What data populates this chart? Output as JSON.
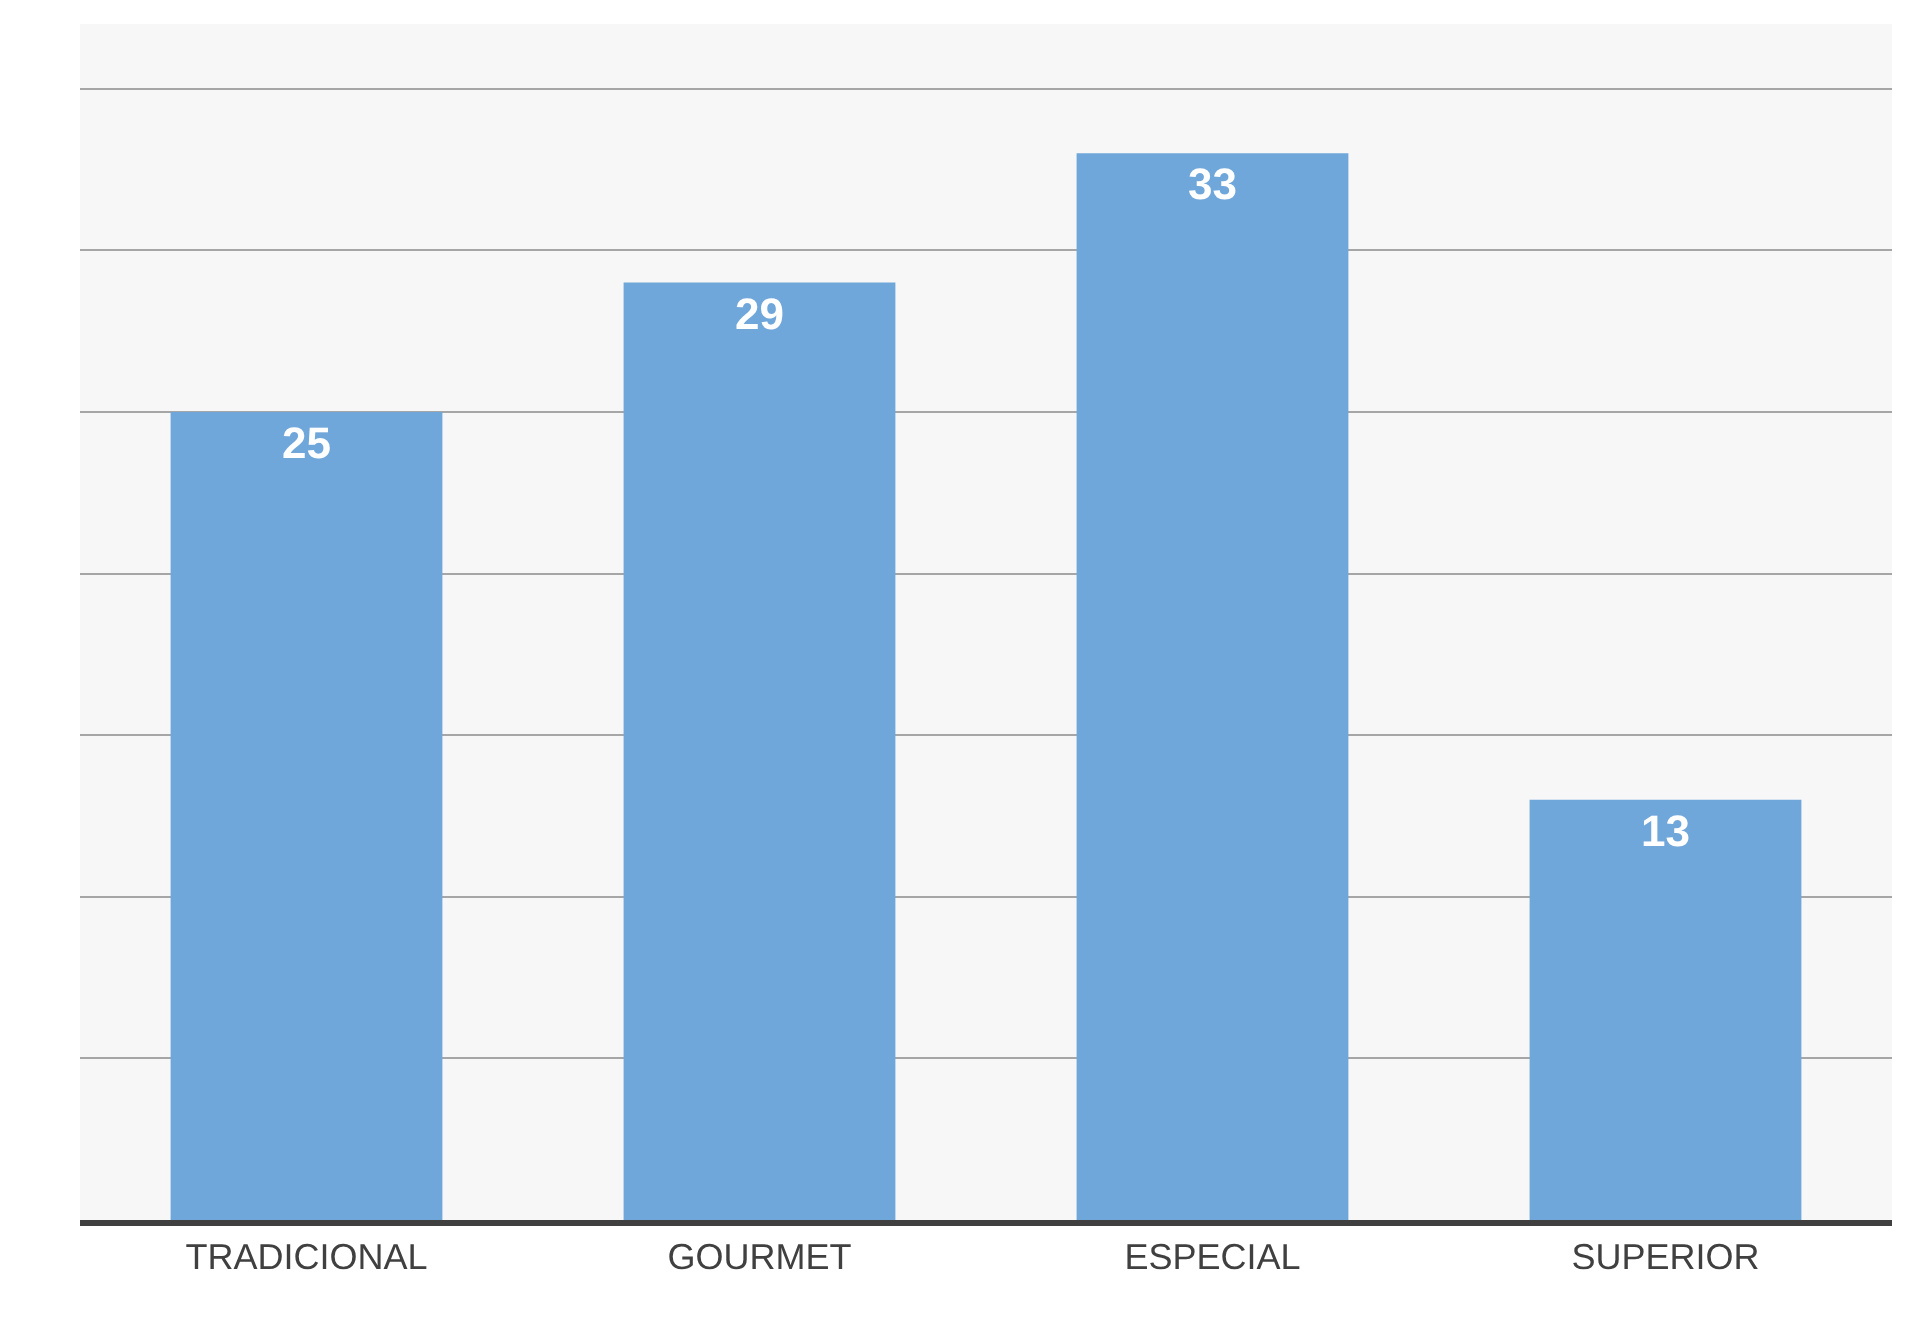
{
  "chart_data": {
    "type": "bar",
    "categories": [
      "TRADICIONAL",
      "GOURMET",
      "ESPECIAL",
      "SUPERIOR"
    ],
    "values": [
      25,
      29,
      33,
      13
    ],
    "color": "#70a7da",
    "data_labels": true,
    "ylim": [
      0,
      37
    ],
    "yticks": [
      {
        "value": 0,
        "label": null
      },
      {
        "value": 5,
        "label": null
      },
      {
        "value": 10,
        "label": null
      },
      {
        "value": 15,
        "label": null
      },
      {
        "value": 20,
        "label": null
      },
      {
        "value": 25,
        "label": null
      },
      {
        "value": 30,
        "label": null
      },
      {
        "value": 35,
        "label": null
      }
    ],
    "grid": "y",
    "tick_labels": "x",
    "legend": false
  }
}
